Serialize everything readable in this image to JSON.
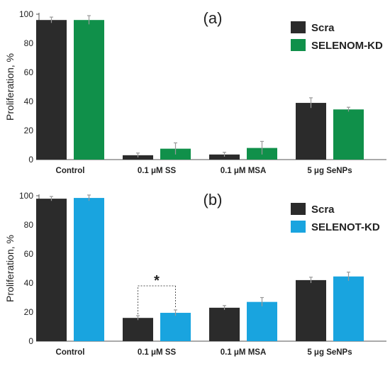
{
  "chart_data": [
    {
      "type": "bar",
      "title": "(a)",
      "xlabel": "",
      "ylabel": "Proliferation, %",
      "ylim": [
        0,
        100
      ],
      "yticks": [
        0,
        20,
        40,
        60,
        80,
        100
      ],
      "categories": [
        "Control",
        "0.1 μM SS",
        "0.1 μM MSA",
        "5 μg SeNPs"
      ],
      "series": [
        {
          "name": "Scra",
          "color": "#2b2b2b",
          "values": [
            96,
            3,
            3.5,
            39
          ],
          "errors": [
            2,
            1.5,
            1.5,
            3.5
          ]
        },
        {
          "name": "SELENOM-KD",
          "color": "#10904a",
          "values": [
            96,
            7.5,
            8,
            34.5
          ],
          "errors": [
            3,
            4,
            4.5,
            1.5
          ]
        }
      ],
      "legend_position": "top-right",
      "annotations": []
    },
    {
      "type": "bar",
      "title": "(b)",
      "xlabel": "",
      "ylabel": "Proliferation, %",
      "ylim": [
        0,
        100
      ],
      "yticks": [
        0,
        20,
        40,
        60,
        80,
        100
      ],
      "categories": [
        "Control",
        "0.1 μM SS",
        "0.1 μM MSA",
        "5 μg SeNPs"
      ],
      "series": [
        {
          "name": "Scra",
          "color": "#2b2b2b",
          "values": [
            98,
            16,
            23,
            42
          ],
          "errors": [
            1.5,
            1.5,
            1.5,
            2
          ]
        },
        {
          "name": "SELENOT-KD",
          "color": "#19a4df",
          "values": [
            98.5,
            19.5,
            27,
            44.5
          ],
          "errors": [
            2,
            2,
            3,
            3
          ]
        }
      ],
      "legend_position": "top-right",
      "annotations": [
        {
          "text": "*",
          "category_index": 1
        }
      ]
    }
  ]
}
